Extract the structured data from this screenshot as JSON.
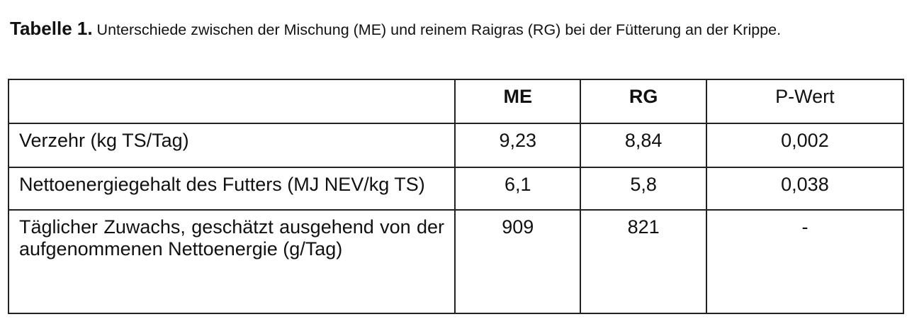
{
  "caption": {
    "label": "Tabelle 1.",
    "text": " Unterschiede zwischen der Mischung (ME) und reinem Raigras (RG) bei der Fütterung an der Krippe."
  },
  "table": {
    "headers": [
      "",
      "ME",
      "RG",
      "P-Wert"
    ],
    "rows": [
      [
        "Verzehr (kg TS/Tag)",
        "9,23",
        "8,84",
        "0,002"
      ],
      [
        "Nettoenergiegehalt des Futters (MJ NEV/kg TS)",
        "6,1",
        "5,8",
        "0,038"
      ],
      [
        "Täglicher Zuwachs, geschätzt ausgehend von der aufgenommenen Nettoenergie (g/Tag)",
        "909",
        "821",
        "-"
      ]
    ]
  }
}
